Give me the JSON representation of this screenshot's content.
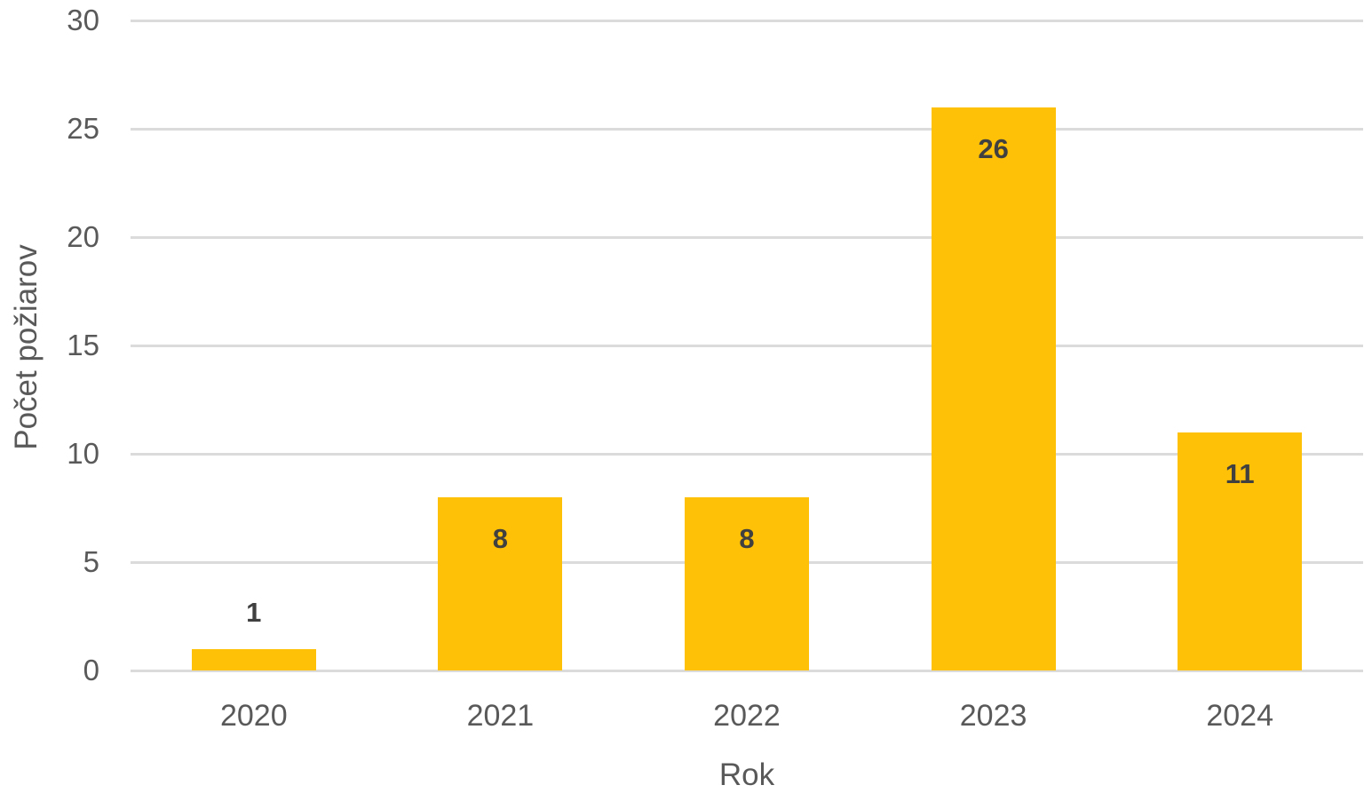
{
  "chart_data": {
    "type": "bar",
    "title": "",
    "categories": [
      "2020",
      "2021",
      "2022",
      "2023",
      "2024"
    ],
    "values": [
      1,
      8,
      8,
      26,
      11
    ],
    "xlabel": "Rok",
    "ylabel": "Počet požiarov",
    "ylim": [
      0,
      30
    ],
    "yticks": [
      0,
      5,
      10,
      15,
      20,
      25,
      30
    ],
    "grid": true,
    "legend": false,
    "data_labels": [
      "1",
      "8",
      "8",
      "26",
      "11"
    ],
    "colors": {
      "bar": "#FFC107",
      "gridline": "#DBDBDB",
      "axis_text": "#595959",
      "data_label": "#404040",
      "background": "#FFFFFF"
    }
  }
}
